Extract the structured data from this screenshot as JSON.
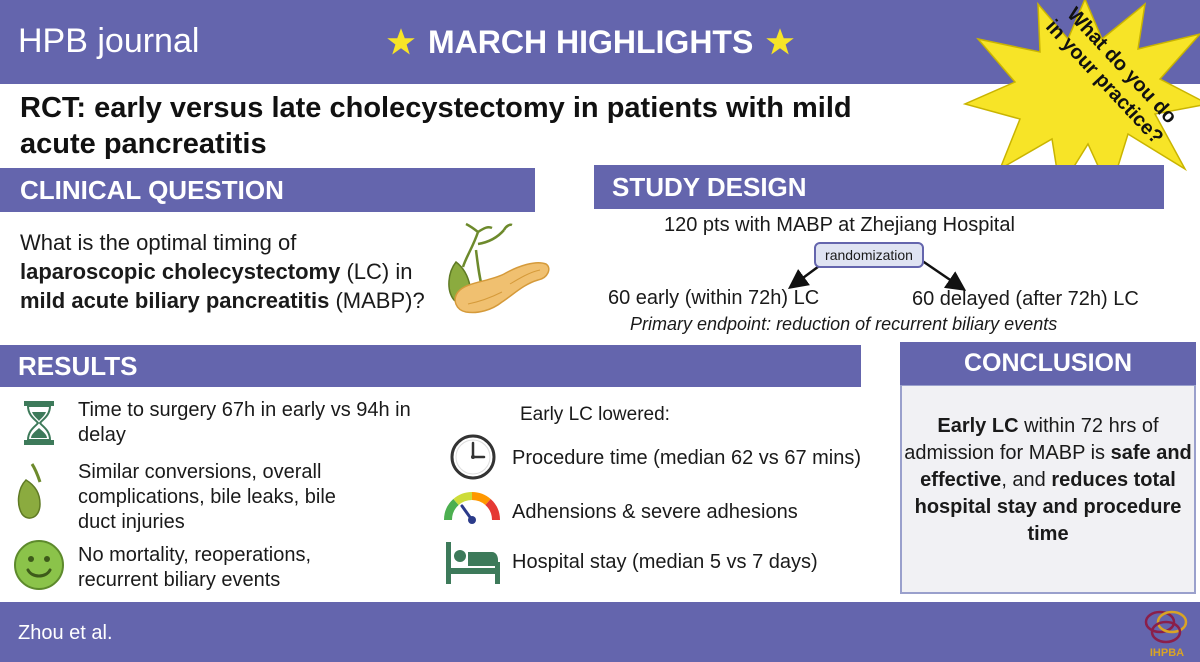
{
  "banner": {
    "journal": "HPB journal",
    "highlights": "MARCH HIGHLIGHTS",
    "burst_line1": "What do you do",
    "burst_line2": "in your practice?",
    "star_color": "#f7e427",
    "bg_color": "#6465ad"
  },
  "title": {
    "line1": "RCT: early versus late cholecystectomy in patients with mild",
    "line2": "acute pancreatitis"
  },
  "clinical": {
    "heading": "CLINICAL QUESTION",
    "q1": "What is the optimal timing of",
    "q2_bold": "laparoscopic cholecystectomy",
    "q2_rest": " (LC) in",
    "q3_bold": "mild acute biliary pancreatitis",
    "q3_rest": " (MABP)?"
  },
  "design": {
    "heading": "STUDY DESIGN",
    "cohort": "120 pts with MABP at Zhejiang Hospital",
    "randomization": "randomization",
    "early_arm": "60 early (within 72h) LC",
    "late_arm": "60 delayed (after 72h) LC",
    "endpoint": "Primary endpoint: reduction of recurrent biliary events"
  },
  "results": {
    "heading": "RESULTS",
    "items": [
      {
        "text": "Time to surgery 67h in early vs 94h in delay",
        "icon": "hourglass-icon"
      },
      {
        "text": "Similar conversions, overall complications, bile leaks, bile duct injuries",
        "icon": "gallbladder-icon"
      },
      {
        "text": " No mortality, reoperations, recurrent biliary events",
        "icon": "smiley-icon"
      }
    ],
    "early_heading": "Early LC lowered:",
    "early_items": [
      {
        "text": "Procedure time (median 62 vs 67 mins)",
        "icon": "clock-icon"
      },
      {
        "text": "Adhensions & severe adhesions",
        "icon": "gauge-icon"
      },
      {
        "text": "Hospital stay (median 5 vs 7 days)",
        "icon": "hospital-bed-icon"
      }
    ]
  },
  "conclusion": {
    "heading": "CONCLUSION",
    "b1": "Early LC",
    "t1": " within 72 hrs of admission for MABP is ",
    "b2": "safe and effective",
    "t2": ", and ",
    "b3": "reduces total hospital stay and procedure time"
  },
  "footer": {
    "citation": "Zhou et al.",
    "logo_text": "IHPBA"
  }
}
